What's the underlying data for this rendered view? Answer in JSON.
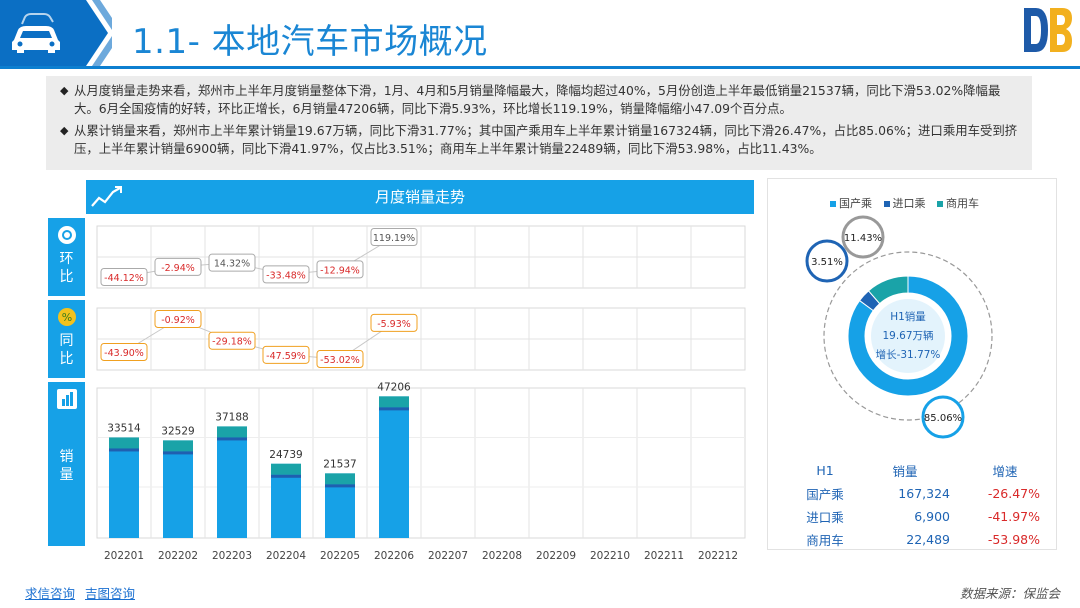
{
  "header": {
    "title": "1.1- 本地汽车市场概况",
    "accent": "#0d7fd0"
  },
  "summary": {
    "paragraphs": [
      "从月度销量走势来看，郑州市上半年月度销量整体下滑，1月、4月和5月销量降幅最大，降幅均超过40%，5月份创造上半年最低销量21537辆，同比下滑53.02%降幅最大。6月全国疫情的好转，环比正增长，6月销量47206辆，同比下滑5.93%，环比增长119.19%，销量降幅缩小47.09个百分点。",
      "从累计销量来看，郑州市上半年累计销量19.67万辆，同比下滑31.77%；其中国产乘用车上半年累计销量167324辆，同比下滑26.47%，占比85.06%；进口乘用车受到挤压，上半年累计销量6900辆，同比下滑41.97%，仅占比3.51%；商用车上半年累计销量22489辆，同比下滑53.98%，占比11.43%。"
    ]
  },
  "labels": {
    "chart_title": "月度销量走势",
    "row_mom": [
      "环",
      "比"
    ],
    "row_yoy": [
      "同",
      "比"
    ],
    "row_sales": [
      "销",
      "量"
    ]
  },
  "footer": {
    "links": [
      "求信咨询",
      "吉图咨询"
    ],
    "source": "数据来源：保监会"
  },
  "chart_data": [
    {
      "type": "bar",
      "title": "月度销量走势",
      "categories": [
        "202201",
        "202202",
        "202203",
        "202204",
        "202205",
        "202206",
        "202207",
        "202208",
        "202209",
        "202210",
        "202211",
        "202212"
      ],
      "values": [
        33514,
        32529,
        37188,
        24739,
        21537,
        47206,
        null,
        null,
        null,
        null,
        null,
        null
      ],
      "mom_pct": [
        "-44.12%",
        "-2.94%",
        "14.32%",
        "-33.48%",
        "-12.94%",
        "119.19%"
      ],
      "mom_values": [
        -44.12,
        -2.94,
        14.32,
        -33.48,
        -12.94,
        119.19
      ],
      "yoy_pct": [
        "-43.90%",
        "-0.92%",
        "-29.18%",
        "-47.59%",
        "-53.02%",
        "-5.93%"
      ],
      "yoy_values": [
        -43.9,
        -0.92,
        -29.18,
        -47.59,
        -53.02,
        -5.93
      ],
      "ylim": [
        0,
        50000
      ],
      "grid": true,
      "colors": {
        "bar": "#16a1e7",
        "cap": "#1aa3a8",
        "band": "#1f5fb0",
        "mom_border": "#aaaaaa",
        "yoy_border": "#f0a020",
        "neg_text": "#d92a2a"
      }
    },
    {
      "type": "pie",
      "legend": [
        "国产乘",
        "进口乘",
        "商用车"
      ],
      "values": [
        85.06,
        3.51,
        11.43
      ],
      "labels": [
        "85.06%",
        "3.51%",
        "11.43%"
      ],
      "colors": [
        "#16a1e7",
        "#1f64b4",
        "#1aa3a8"
      ],
      "center_lines": [
        "H1销量",
        "19.67万辆",
        "增长-31.77%"
      ],
      "legend_position": "top"
    }
  ],
  "table": {
    "headers": [
      "H1",
      "销量",
      "增速"
    ],
    "rows": [
      [
        "国产乘",
        "167,324",
        "-26.47%"
      ],
      [
        "进口乘",
        "6,900",
        "-41.97%"
      ],
      [
        "商用车",
        "22,489",
        "-53.98%"
      ]
    ]
  }
}
